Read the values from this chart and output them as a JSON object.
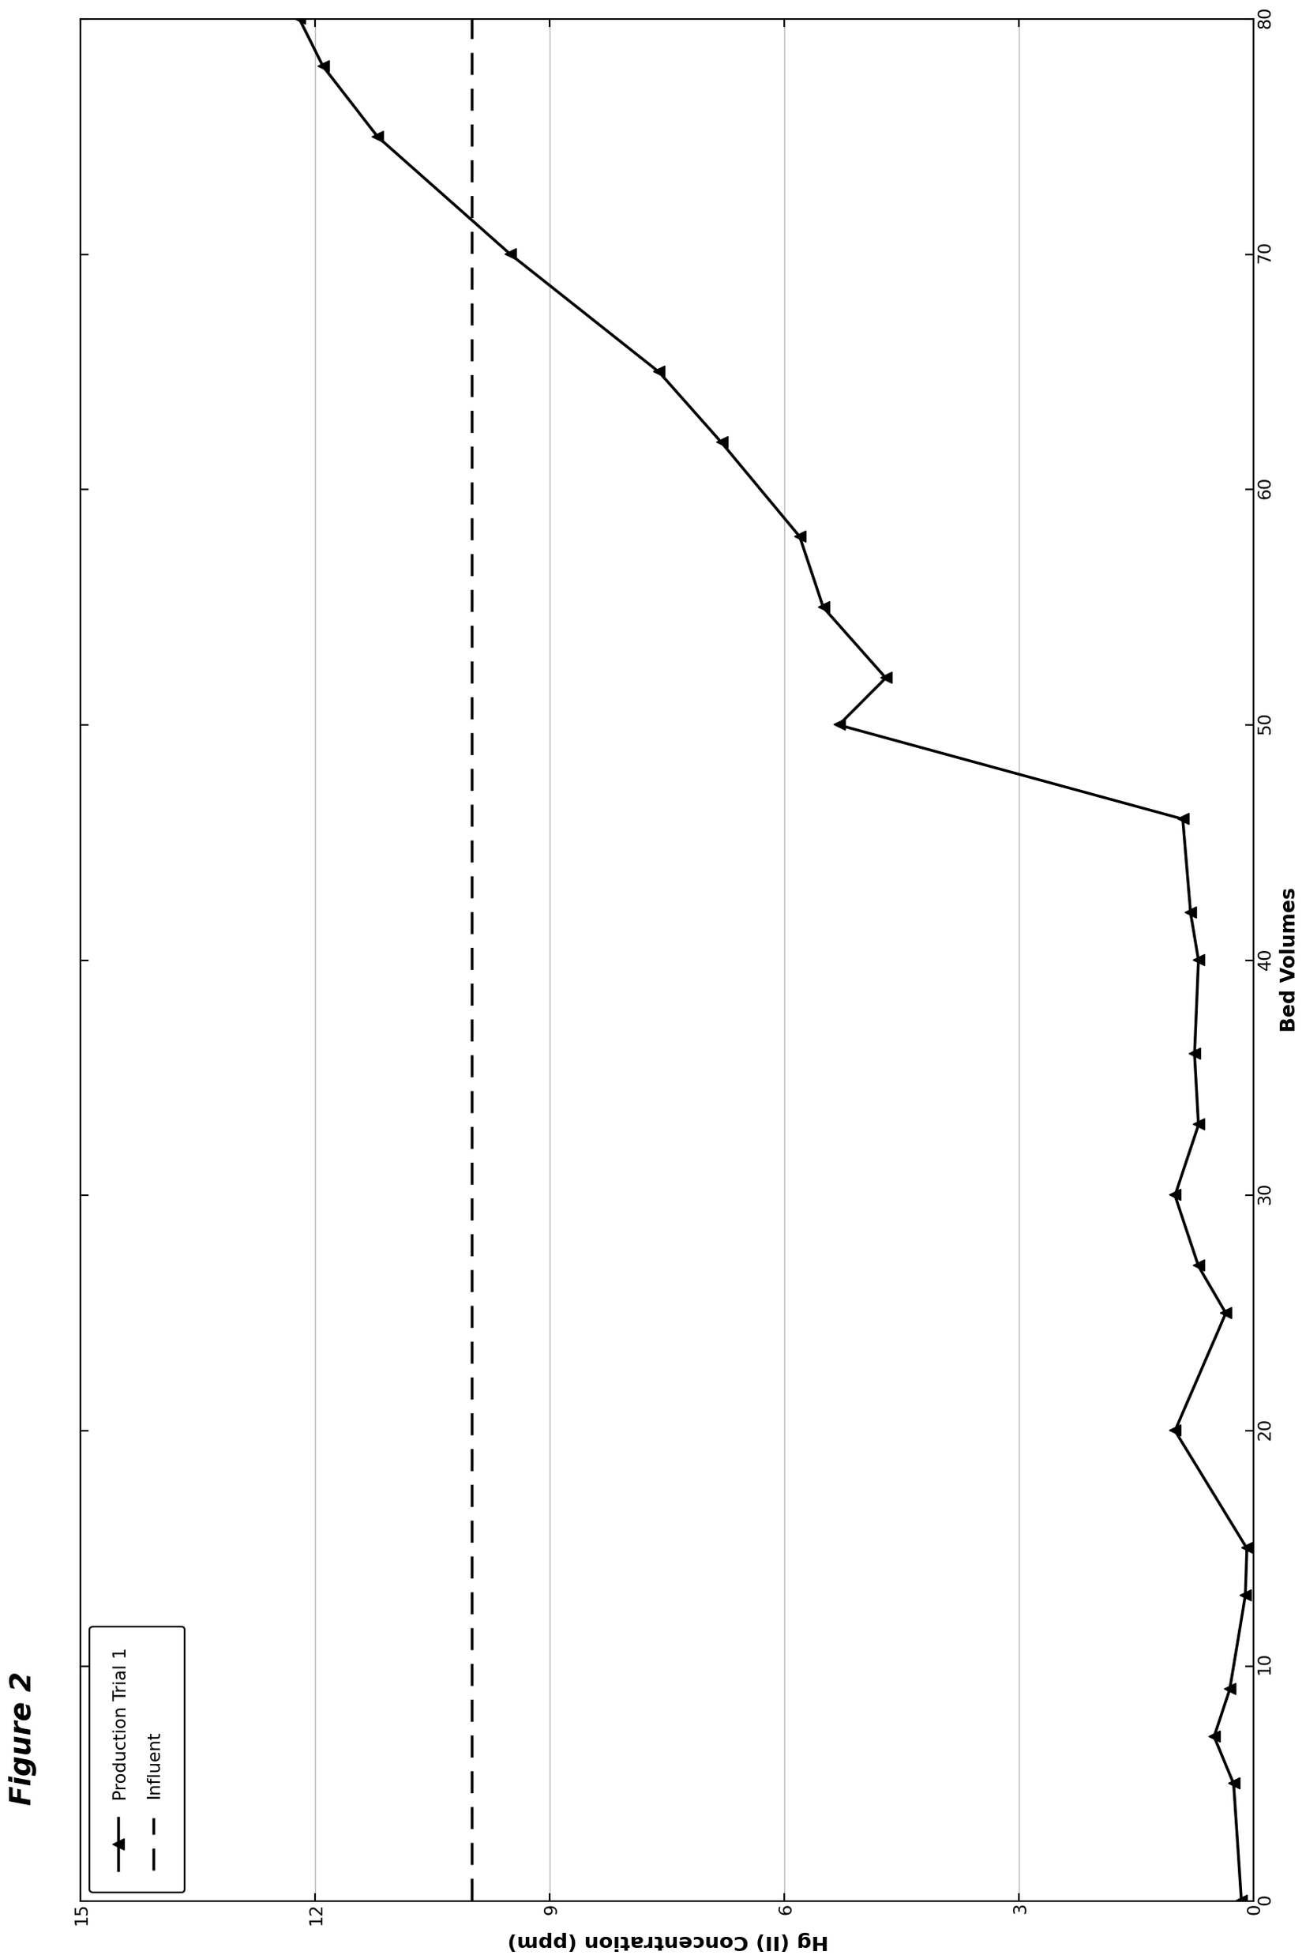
{
  "title": "Figure 2",
  "xlabel": "Bed Volumes",
  "ylabel": "Hg (II) Concentration (ppm)",
  "xlim": [
    0,
    80
  ],
  "ylim": [
    0,
    15
  ],
  "xticks": [
    0,
    10,
    20,
    30,
    40,
    50,
    60,
    70,
    80
  ],
  "yticks": [
    0,
    3,
    6,
    9,
    12,
    15
  ],
  "influent_y": 10.0,
  "production_trial_1": {
    "x": [
      0,
      5,
      7,
      9,
      13,
      15,
      20,
      25,
      27,
      30,
      33,
      36,
      40,
      42,
      46,
      50,
      52,
      55,
      58,
      62,
      65,
      70,
      75,
      78,
      80
    ],
    "y": [
      0.15,
      0.25,
      0.5,
      0.3,
      0.1,
      0.08,
      1.0,
      0.35,
      0.7,
      1.0,
      0.7,
      0.75,
      0.7,
      0.8,
      0.9,
      5.3,
      4.7,
      5.5,
      5.8,
      6.8,
      7.6,
      9.5,
      11.2,
      11.9,
      12.2
    ]
  },
  "line_color": "#000000",
  "background_color": "#ffffff",
  "legend_labels": [
    "Production Trial 1",
    "Influent"
  ],
  "title_fontsize": 26,
  "axis_label_fontsize": 18,
  "tick_fontsize": 16,
  "legend_fontsize": 16,
  "figure_width": 24.8,
  "figure_height": 16.54
}
